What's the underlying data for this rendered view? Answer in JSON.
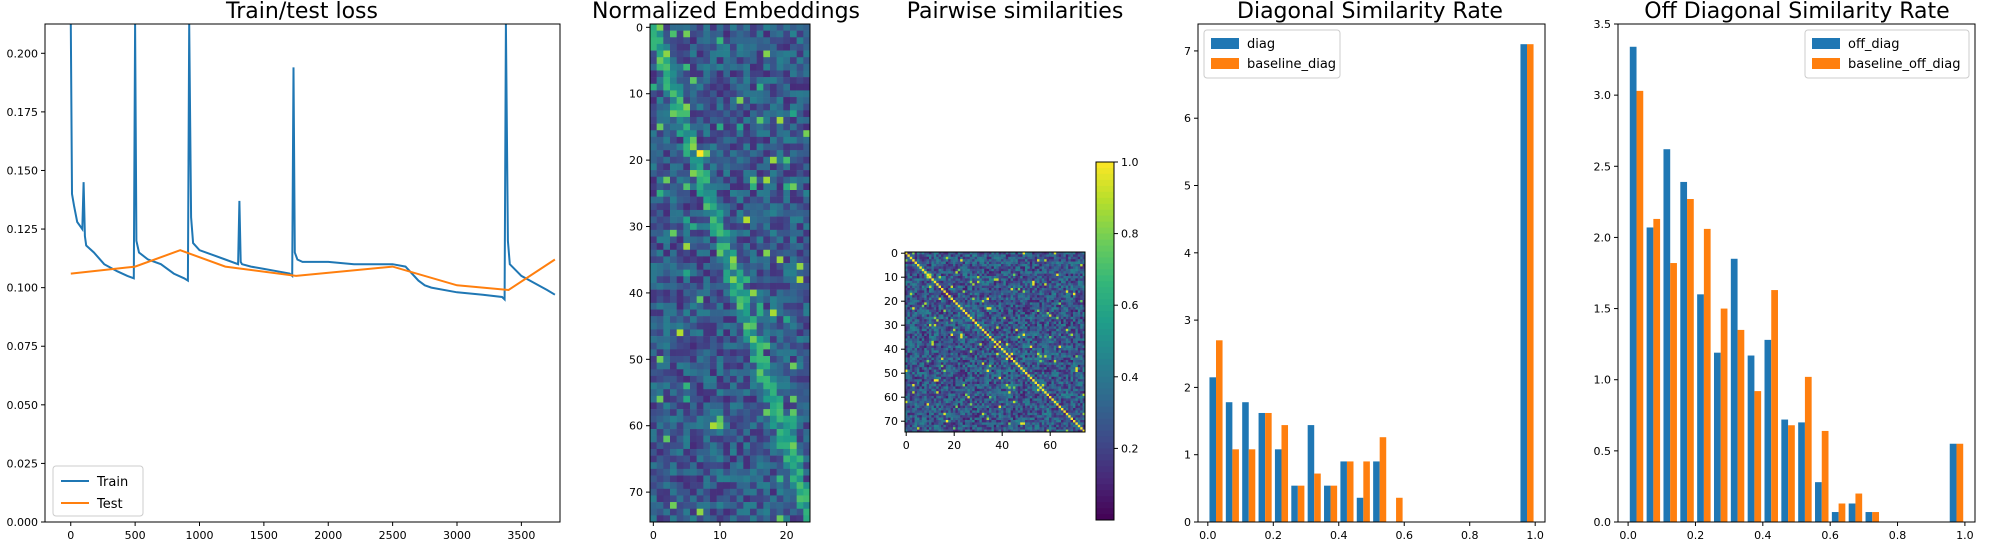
{
  "chart_data": [
    {
      "type": "line",
      "title": "Train/test loss",
      "xlabel": "",
      "ylabel": "",
      "xlim": [
        -200,
        3800
      ],
      "ylim": [
        0,
        0.2125
      ],
      "xticks": [
        0,
        500,
        1000,
        1500,
        2000,
        2500,
        3000,
        3500
      ],
      "yticks": [
        0.0,
        0.025,
        0.05,
        0.075,
        0.1,
        0.125,
        0.15,
        0.175,
        0.2
      ],
      "legend_position": "lower-left",
      "series": [
        {
          "name": "Train",
          "color": "#1f77b4",
          "x": [
            0,
            10,
            25,
            50,
            90,
            100,
            110,
            120,
            180,
            260,
            360,
            440,
            490,
            500,
            510,
            530,
            600,
            700,
            800,
            880,
            910,
            920,
            935,
            950,
            1000,
            1100,
            1200,
            1300,
            1310,
            1320,
            1330,
            1400,
            1500,
            1600,
            1700,
            1720,
            1730,
            1740,
            1760,
            1800,
            2000,
            2200,
            2500,
            2600,
            2700,
            2750,
            2800,
            3000,
            3200,
            3350,
            3370,
            3380,
            3395,
            3410,
            3500,
            3600,
            3700,
            3760
          ],
          "y": [
            0.2125,
            0.14,
            0.135,
            0.128,
            0.125,
            0.145,
            0.122,
            0.118,
            0.115,
            0.11,
            0.107,
            0.105,
            0.104,
            0.2125,
            0.12,
            0.115,
            0.112,
            0.11,
            0.106,
            0.104,
            0.103,
            0.2125,
            0.13,
            0.119,
            0.116,
            0.114,
            0.112,
            0.11,
            0.137,
            0.111,
            0.11,
            0.109,
            0.108,
            0.107,
            0.106,
            0.105,
            0.194,
            0.115,
            0.112,
            0.111,
            0.111,
            0.11,
            0.11,
            0.109,
            0.103,
            0.101,
            0.1,
            0.098,
            0.097,
            0.096,
            0.095,
            0.2125,
            0.12,
            0.11,
            0.105,
            0.102,
            0.099,
            0.097
          ]
        },
        {
          "name": "Test",
          "color": "#ff7f0e",
          "x": [
            0,
            500,
            850,
            1200,
            1750,
            2500,
            3000,
            3400,
            3760
          ],
          "y": [
            0.106,
            0.109,
            0.116,
            0.109,
            0.105,
            0.109,
            0.101,
            0.099,
            0.112
          ]
        }
      ]
    },
    {
      "type": "heatmap",
      "title": "Normalized Embeddings",
      "rows": 75,
      "cols": 24,
      "colormap": "viridis",
      "xticks": [
        0,
        10,
        20
      ],
      "yticks": [
        0,
        10,
        20,
        30,
        40,
        50,
        60,
        70
      ]
    },
    {
      "type": "heatmap",
      "title": "Pairwise similarities",
      "rows": 75,
      "cols": 75,
      "colormap": "viridis",
      "xticks": [
        0,
        20,
        40,
        60
      ],
      "yticks": [
        0,
        10,
        20,
        30,
        40,
        50,
        60,
        70
      ],
      "colorbar": {
        "min": 0.0,
        "max": 1.0,
        "ticks": [
          0.2,
          0.4,
          0.6,
          0.8,
          1.0
        ]
      }
    },
    {
      "type": "bar",
      "title": "Diagonal Similarity Rate",
      "xlim": [
        -0.03,
        1.03
      ],
      "ylim": [
        0,
        7.4
      ],
      "xticks": [
        0.0,
        0.2,
        0.4,
        0.6,
        0.8,
        1.0
      ],
      "yticks": [
        0,
        1,
        2,
        3,
        4,
        5,
        6,
        7
      ],
      "legend_position": "upper-left",
      "bin_edges": [
        0.0,
        0.05,
        0.1,
        0.15,
        0.2,
        0.25,
        0.3,
        0.35,
        0.4,
        0.45,
        0.5,
        0.55,
        0.6,
        0.65,
        0.7,
        0.75,
        0.8,
        0.85,
        0.9,
        0.95,
        1.0
      ],
      "series": [
        {
          "name": "diag",
          "color": "#1f77b4",
          "values": [
            2.15,
            1.78,
            1.78,
            1.62,
            1.08,
            0.54,
            1.44,
            0.54,
            0.9,
            0.36,
            0.9,
            0,
            0,
            0,
            0,
            0,
            0,
            0,
            0,
            7.1
          ]
        },
        {
          "name": "baseline_diag",
          "color": "#ff7f0e",
          "values": [
            2.7,
            1.08,
            1.08,
            1.62,
            1.44,
            0.54,
            0.72,
            0.54,
            0.9,
            0.9,
            1.26,
            0.36,
            0,
            0,
            0,
            0,
            0,
            0,
            0,
            7.1
          ]
        }
      ]
    },
    {
      "type": "bar",
      "title": "Off Diagonal Similarity Rate",
      "xlim": [
        -0.03,
        1.03
      ],
      "ylim": [
        0,
        3.5
      ],
      "xticks": [
        0.0,
        0.2,
        0.4,
        0.6,
        0.8,
        1.0
      ],
      "yticks": [
        0.0,
        0.5,
        1.0,
        1.5,
        2.0,
        2.5,
        3.0,
        3.5
      ],
      "legend_position": "upper-right",
      "bin_edges": [
        0.0,
        0.05,
        0.1,
        0.15,
        0.2,
        0.25,
        0.3,
        0.35,
        0.4,
        0.45,
        0.5,
        0.55,
        0.6,
        0.65,
        0.7,
        0.75,
        0.8,
        0.85,
        0.9,
        0.95,
        1.0
      ],
      "series": [
        {
          "name": "off_diag",
          "color": "#1f77b4",
          "values": [
            3.34,
            2.07,
            2.62,
            2.39,
            1.6,
            1.19,
            1.85,
            1.17,
            1.28,
            0.72,
            0.7,
            0.28,
            0.07,
            0.13,
            0.07,
            0,
            0,
            0,
            0,
            0.55
          ]
        },
        {
          "name": "baseline_off_diag",
          "color": "#ff7f0e",
          "values": [
            3.03,
            2.13,
            1.82,
            2.27,
            2.06,
            1.5,
            1.35,
            0.92,
            1.63,
            0.68,
            1.02,
            0.64,
            0.13,
            0.2,
            0.07,
            0,
            0,
            0,
            0,
            0.55
          ]
        }
      ]
    }
  ]
}
